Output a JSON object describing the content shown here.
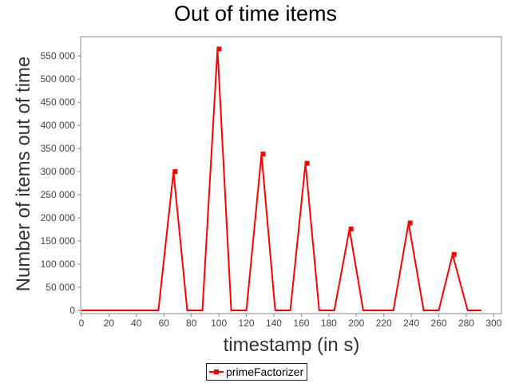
{
  "chart_data": {
    "type": "line",
    "title": "Out of time items",
    "xlabel": "timestamp (in s)",
    "ylabel": "Number of items out of time",
    "xlim": [
      0,
      305
    ],
    "ylim": [
      0,
      590000
    ],
    "x_ticks": [
      0,
      20,
      40,
      60,
      80,
      100,
      120,
      140,
      160,
      180,
      200,
      220,
      240,
      260,
      280,
      300
    ],
    "y_ticks": [
      0,
      50000,
      100000,
      150000,
      200000,
      250000,
      300000,
      350000,
      400000,
      450000,
      500000,
      550000
    ],
    "x_tick_labels": [
      "0",
      "20",
      "40",
      "60",
      "80",
      "100",
      "120",
      "140",
      "160",
      "180",
      "200",
      "220",
      "240",
      "260",
      "280",
      "300"
    ],
    "y_tick_labels": [
      "0",
      "50 000",
      "100 000",
      "150 000",
      "200 000",
      "250 000",
      "300 000",
      "350 000",
      "400 000",
      "450 000",
      "500 000",
      "550 000"
    ],
    "grid": false,
    "legend_position": "bottom",
    "series": [
      {
        "name": "primeFactorizer",
        "color": "#ff0000",
        "x": [
          0,
          56,
          67,
          77,
          88,
          99,
          109,
          120,
          131,
          141,
          152,
          163,
          173,
          184,
          195,
          205,
          227,
          238,
          249,
          260,
          270,
          281,
          291
        ],
        "y": [
          0,
          0,
          300000,
          0,
          0,
          565000,
          0,
          0,
          338000,
          0,
          0,
          318000,
          0,
          0,
          176000,
          0,
          0,
          189000,
          0,
          0,
          121000,
          0,
          0
        ],
        "marked": [
          false,
          false,
          true,
          false,
          false,
          true,
          false,
          false,
          true,
          false,
          false,
          true,
          false,
          false,
          true,
          false,
          false,
          true,
          false,
          false,
          true,
          false,
          false
        ]
      }
    ]
  }
}
